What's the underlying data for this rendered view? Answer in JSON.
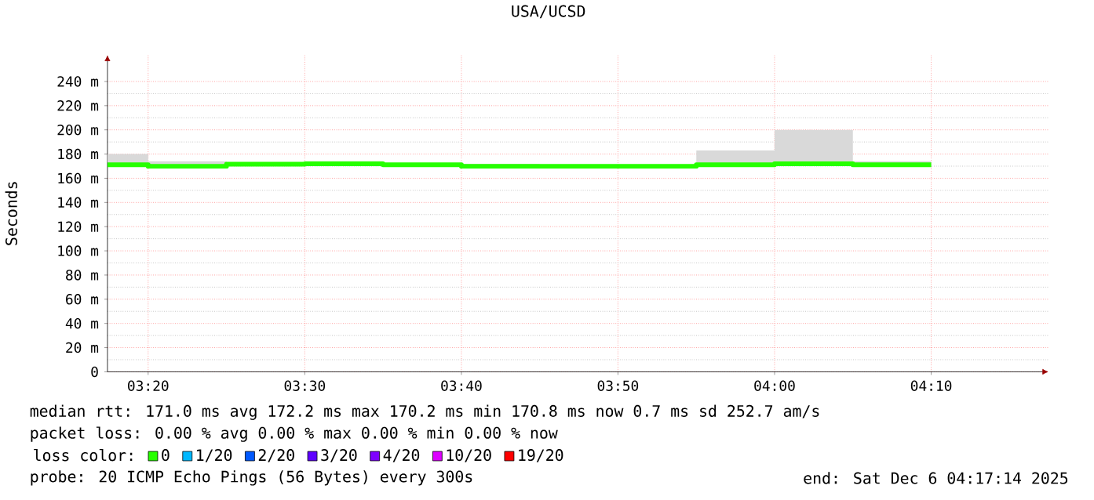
{
  "chart_data": {
    "type": "step",
    "title": "USA/UCSD",
    "ylabel": "Seconds",
    "legend_title": "loss color:",
    "x": [
      3.29,
      3.3333,
      3.4167,
      3.5,
      3.5833,
      3.6667,
      3.75,
      3.8333,
      3.9167,
      4.0,
      4.0833,
      4.1667
    ],
    "series": [
      {
        "name": "0",
        "color": "#26ff00",
        "values": [
          171.2,
          169.9,
          171.6,
          172,
          171.2,
          169.9,
          169.9,
          169.9,
          171.2,
          172,
          171.2,
          171.2
        ],
        "lower": [
          169.5,
          168.5,
          170,
          170.5,
          170,
          168,
          168.5,
          168.5,
          170,
          170.5,
          170,
          170
        ],
        "upper": [
          180,
          174,
          173,
          174,
          171.5,
          172,
          171,
          171,
          183,
          200,
          174,
          174
        ]
      },
      {
        "name": "1/20",
        "color": "#00b8ff",
        "values": [
          null,
          null,
          null,
          null,
          null,
          null,
          null,
          null,
          null,
          null,
          null,
          null
        ]
      },
      {
        "name": "2/20",
        "color": "#0059ff",
        "values": [
          null,
          null,
          null,
          null,
          null,
          null,
          null,
          null,
          null,
          null,
          null,
          null
        ]
      },
      {
        "name": "3/20",
        "color": "#5e00ff",
        "values": [
          null,
          null,
          null,
          null,
          null,
          null,
          null,
          null,
          null,
          null,
          null,
          null
        ]
      },
      {
        "name": "4/20",
        "color": "#7e00ff",
        "values": [
          null,
          null,
          null,
          null,
          null,
          null,
          null,
          null,
          null,
          null,
          null,
          null
        ]
      },
      {
        "name": "10/20",
        "color": "#dd00ff",
        "values": [
          null,
          null,
          null,
          null,
          null,
          null,
          null,
          null,
          null,
          null,
          null,
          null
        ]
      },
      {
        "name": "19/20",
        "color": "#ff0000",
        "values": [
          null,
          null,
          null,
          null,
          null,
          null,
          null,
          null,
          null,
          null,
          null,
          null
        ]
      }
    ],
    "xlim": [
      3.29,
      4.2917
    ],
    "ylim": [
      0,
      262
    ],
    "xticks": [
      {
        "value": 3.3333,
        "label": "03:20"
      },
      {
        "value": 3.5,
        "label": "03:30"
      },
      {
        "value": 3.6667,
        "label": "03:40"
      },
      {
        "value": 3.8333,
        "label": "03:50"
      },
      {
        "value": 4.0,
        "label": "04:00"
      },
      {
        "value": 4.1667,
        "label": "04:10"
      }
    ],
    "yticks": [
      0,
      {
        "value": 20,
        "label": "20 m"
      },
      {
        "value": 40,
        "label": "40 m"
      },
      {
        "value": 60,
        "label": "60 m"
      },
      {
        "value": 80,
        "label": "80 m"
      },
      {
        "value": 100,
        "label": "100 m"
      },
      {
        "value": 120,
        "label": "120 m"
      },
      {
        "value": 140,
        "label": "140 m"
      },
      {
        "value": 160,
        "label": "160 m"
      },
      {
        "value": 180,
        "label": "180 m"
      },
      {
        "value": 200,
        "label": "200 m"
      },
      {
        "value": 220,
        "label": "220 m"
      },
      {
        "value": 240,
        "label": "240 m"
      }
    ],
    "grid": true,
    "legend": "bottom",
    "marker": "none",
    "line_style": "solid",
    "annotations": [
      "median rtt:  171.0 ms avg  172.2 ms max  170.2 ms min  170.8 ms now  0.7 ms sd  252.7   am/s",
      "packet loss: 0.00 % avg  0.00 % max  0.00 % min  0.00 % now",
      "probe:       20 ICMP Echo Pings (56 Bytes) every 300s",
      "end: Sat Dec  6 04:17:14 2025"
    ]
  }
}
